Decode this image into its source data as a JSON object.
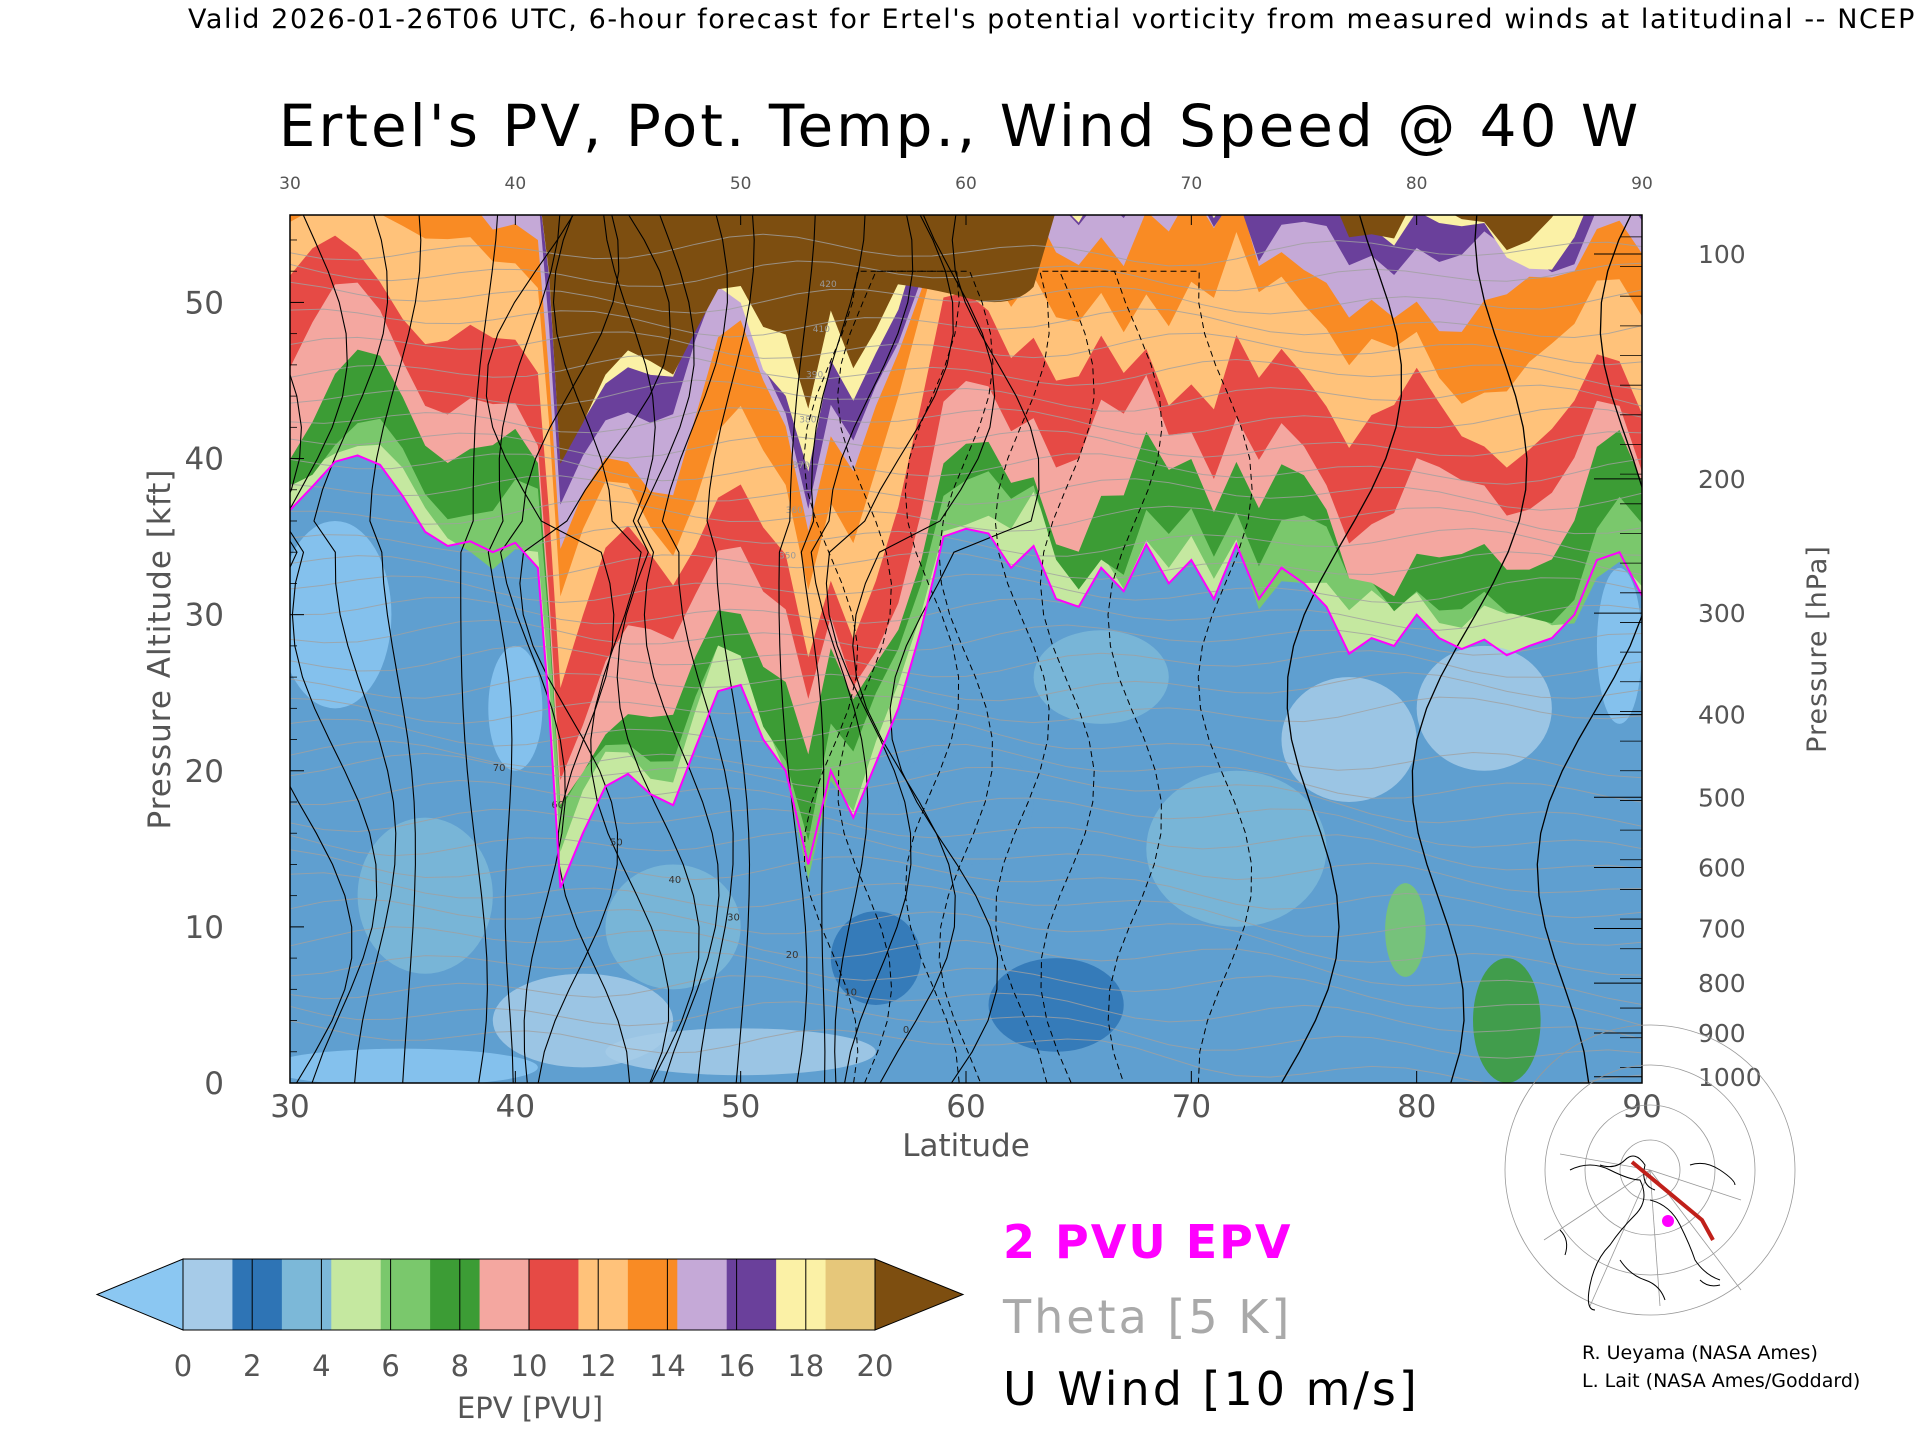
{
  "header": {
    "text": "Valid 2026-01-26T06 UTC, 6-hour forecast for Ertel's potential vorticity from measured winds at latitudinal -- NCEP"
  },
  "chart_data": {
    "type": "heatmap",
    "title": "Ertel's PV, Pot. Temp., Wind Speed @ 40 W",
    "xlabel": "Latitude",
    "ylabel_left": "Pressure Altitude [kft]",
    "ylabel_right": "Pressure [hPa]",
    "x_ticks": [
      30,
      40,
      50,
      60,
      70,
      80,
      90
    ],
    "top_ticks": [
      30,
      40,
      50,
      60,
      70,
      80,
      90
    ],
    "xlim": [
      30,
      90
    ],
    "y_ticks": [
      0,
      10,
      20,
      30,
      40,
      50
    ],
    "ylim": [
      0,
      55.6
    ],
    "pressure_ticks": [
      {
        "label": "100",
        "kft": 53.1
      },
      {
        "label": "200",
        "kft": 38.7
      },
      {
        "label": "300",
        "kft": 30.1
      },
      {
        "label": "400",
        "kft": 23.6
      },
      {
        "label": "500",
        "kft": 18.3
      },
      {
        "label": "600",
        "kft": 13.8
      },
      {
        "label": "700",
        "kft": 9.9
      },
      {
        "label": "800",
        "kft": 6.4
      },
      {
        "label": "900",
        "kft": 3.2
      },
      {
        "label": "1000",
        "kft": 0.4
      }
    ],
    "tropopause_2pvu_kft": [
      [
        30,
        36.7
      ],
      [
        31,
        38.2
      ],
      [
        32,
        39.8
      ],
      [
        33,
        40.2
      ],
      [
        34,
        39.6
      ],
      [
        35,
        37.6
      ],
      [
        36,
        35.3
      ],
      [
        37,
        34.4
      ],
      [
        38,
        34.7
      ],
      [
        39,
        34.0
      ],
      [
        40,
        34.6
      ],
      [
        41,
        33.0
      ],
      [
        41.5,
        24.0
      ],
      [
        42,
        12.5
      ],
      [
        43,
        16.0
      ],
      [
        44,
        19.0
      ],
      [
        45,
        19.8
      ],
      [
        46,
        18.5
      ],
      [
        47,
        17.8
      ],
      [
        48,
        21.5
      ],
      [
        49,
        25.1
      ],
      [
        50,
        25.5
      ],
      [
        51,
        22.0
      ],
      [
        52,
        20.0
      ],
      [
        53,
        14.0
      ],
      [
        54,
        20.0
      ],
      [
        55,
        17.0
      ],
      [
        56,
        20.5
      ],
      [
        57,
        24.0
      ],
      [
        58,
        29.0
      ],
      [
        59,
        35.0
      ],
      [
        60,
        35.5
      ],
      [
        61,
        35.2
      ],
      [
        62,
        33.0
      ],
      [
        63,
        34.4
      ],
      [
        64,
        31.0
      ],
      [
        65,
        30.5
      ],
      [
        66,
        33.0
      ],
      [
        67,
        31.5
      ],
      [
        68,
        34.5
      ],
      [
        69,
        32.0
      ],
      [
        70,
        33.5
      ],
      [
        71,
        31.0
      ],
      [
        72,
        34.5
      ],
      [
        73,
        31.0
      ],
      [
        74,
        33.0
      ],
      [
        75,
        32.0
      ],
      [
        76,
        30.5
      ],
      [
        77,
        27.5
      ],
      [
        78,
        28.5
      ],
      [
        79,
        28.0
      ],
      [
        80,
        30.0
      ],
      [
        81,
        28.5
      ],
      [
        82,
        27.8
      ],
      [
        83,
        28.4
      ],
      [
        84,
        27.4
      ],
      [
        85,
        28.0
      ],
      [
        86,
        28.5
      ],
      [
        87,
        30.0
      ],
      [
        88,
        33.5
      ],
      [
        89,
        34.0
      ],
      [
        90,
        31.2
      ]
    ],
    "theta_labels": [
      "420",
      "410",
      "390",
      "380",
      "370",
      "360",
      "350"
    ],
    "u_wind_labels": [
      "70",
      "60",
      "50",
      "40",
      "30",
      "20",
      "10",
      "0"
    ],
    "colorbar": {
      "label": "EPV [PVU]",
      "ticks": [
        0,
        2,
        4,
        6,
        8,
        10,
        12,
        14,
        16,
        18,
        20
      ],
      "colors": [
        "#a6cbe8",
        "#2e74b5",
        "#7cb8d8",
        "#c5e8a0",
        "#7ac86c",
        "#3c9c35",
        "#f4a7a0",
        "#e64a45",
        "#ffc27a",
        "#f98b24",
        "#c5a9d7",
        "#6a409b",
        "#fbf1a6",
        "#e6c77a"
      ],
      "under_color": "#8bc7f2",
      "over_color": "#7d4e10"
    }
  },
  "legend": {
    "pvu": "2 PVU EPV",
    "theta": "Theta [5 K]",
    "uwind": "U Wind [10 m/s]"
  },
  "credits": {
    "line1": "R. Ueyama (NASA Ames)",
    "line2": "L. Lait (NASA Ames/Goddard)"
  }
}
